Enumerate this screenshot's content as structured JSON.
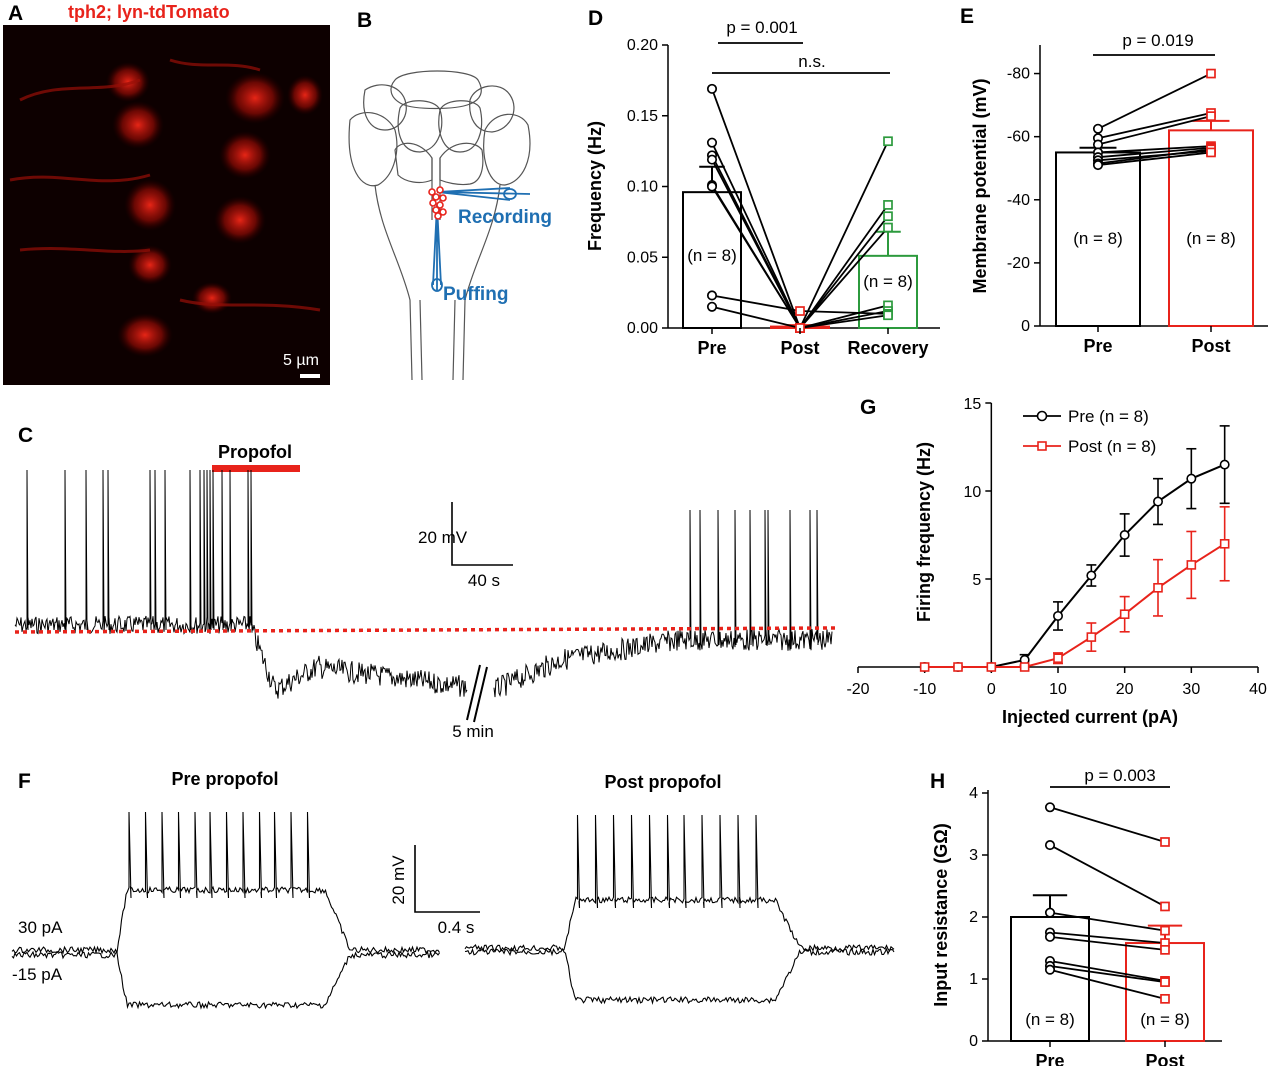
{
  "panels": {
    "a": {
      "label": "A",
      "title": "tph2; lyn-tdTomato",
      "scale_bar": "5 µm"
    },
    "b": {
      "label": "B",
      "recording": "Recording",
      "puffing": "Puffing"
    },
    "c": {
      "label": "C",
      "drug": "Propofol",
      "scale_v": "20 mV",
      "scale_t": "40 s",
      "break": "5 min"
    },
    "d": {
      "label": "D",
      "stat_main": "p = 0.001",
      "stat_ns": "n.s.",
      "n_left": "(n = 8)",
      "n_right": "(n = 8)"
    },
    "e": {
      "label": "E",
      "stat": "p = 0.019",
      "n_pre": "(n = 8)",
      "n_post": "(n = 8)"
    },
    "f": {
      "label": "F",
      "pre_title": "Pre propofol",
      "post_title": "Post propofol",
      "current_hi": "30 pA",
      "current_lo": "-15 pA",
      "scale_v": "20 mV",
      "scale_t": "0.4 s"
    },
    "g": {
      "label": "G"
    },
    "h": {
      "label": "H",
      "stat": "p = 0.003",
      "n_pre": "(n = 8)",
      "n_post": "(n = 8)"
    }
  },
  "colors": {
    "red": "#e8231b",
    "blue": "#1f6fb2",
    "green": "#2c9a3d",
    "black": "#000000"
  },
  "chart_data": [
    {
      "id": "d",
      "type": "bar",
      "ylabel": "Frequency (Hz)",
      "categories": [
        "Pre",
        "Post",
        "Recovery"
      ],
      "ylim": [
        0,
        0.2
      ],
      "yticks": [
        "0.00",
        "0.05",
        "0.10",
        "0.15",
        "0.20"
      ],
      "ytick_values": [
        0,
        0.05,
        0.1,
        0.15,
        0.2
      ],
      "values": [
        0.096,
        0.001,
        0.051
      ],
      "errors": [
        0.018,
        0.001,
        0.017
      ],
      "pairs": [
        [
          0.169,
          0.0,
          0.132
        ],
        [
          0.131,
          0.0,
          0.087
        ],
        [
          0.122,
          0.0,
          0.079
        ],
        [
          0.119,
          0.0,
          0.071
        ],
        [
          0.101,
          0.0,
          0.016
        ],
        [
          0.1,
          0.0,
          0.012
        ],
        [
          0.023,
          0.012,
          0.01
        ],
        [
          0.015,
          0.0,
          0.009
        ]
      ]
    },
    {
      "id": "e",
      "type": "bar",
      "ylabel": "Membrane potential (mV)",
      "categories": [
        "Pre",
        "Post"
      ],
      "ylim": [
        0,
        -90
      ],
      "yticks": [
        "0",
        "-20",
        "-40",
        "-60",
        "-80"
      ],
      "ytick_values": [
        0,
        -20,
        -40,
        -60,
        -80
      ],
      "values": [
        -55.0,
        -62.0
      ],
      "errors": [
        1.5,
        3.0
      ],
      "pairs": [
        [
          -62.5,
          -80.0
        ],
        [
          -59.5,
          -67.5
        ],
        [
          -57.5,
          -66.5
        ],
        [
          -55.0,
          -57.0
        ],
        [
          -53.5,
          -56.5
        ],
        [
          -52.5,
          -55.5
        ],
        [
          -51.5,
          -56.0
        ],
        [
          -51.0,
          -55.0
        ]
      ]
    },
    {
      "id": "g",
      "type": "line",
      "xlabel": "Injected current (pA)",
      "ylabel": "Firing frequency (Hz)",
      "xlim": [
        -20,
        40
      ],
      "ylim": [
        0,
        15
      ],
      "xticks": [
        "-20",
        "-10",
        "0",
        "10",
        "20",
        "30",
        "40"
      ],
      "xtick_values": [
        -20,
        -10,
        0,
        10,
        20,
        30,
        40
      ],
      "yticks": [
        "5",
        "10",
        "15"
      ],
      "ytick_values": [
        5,
        10,
        15
      ],
      "x": [
        -10,
        -5,
        0,
        5,
        10,
        15,
        20,
        25,
        30,
        35
      ],
      "series": [
        {
          "name": "Pre (n = 8)",
          "values": [
            0,
            0,
            0,
            0.4,
            2.9,
            5.2,
            7.5,
            9.4,
            10.7,
            11.5
          ],
          "errors": [
            0,
            0,
            0,
            0.3,
            0.8,
            0.6,
            1.2,
            1.3,
            1.7,
            2.2
          ]
        },
        {
          "name": "Post (n = 8)",
          "values": [
            0,
            0,
            0,
            0,
            0.5,
            1.7,
            3.0,
            4.5,
            5.8,
            7.0
          ],
          "errors": [
            0,
            0,
            0,
            0,
            0.3,
            0.8,
            1.0,
            1.6,
            1.9,
            2.1
          ]
        }
      ]
    },
    {
      "id": "h",
      "type": "bar",
      "ylabel": "Input resistance (GΩ)",
      "categories": [
        "Pre",
        "Post"
      ],
      "ylim": [
        0,
        4
      ],
      "yticks": [
        "0",
        "1",
        "2",
        "3",
        "4"
      ],
      "ytick_values": [
        0,
        1,
        2,
        3,
        4
      ],
      "values": [
        2.0,
        1.58
      ],
      "errors": [
        0.35,
        0.28
      ],
      "pairs": [
        [
          3.77,
          3.21
        ],
        [
          3.16,
          2.17
        ],
        [
          2.07,
          1.78
        ],
        [
          1.75,
          1.58
        ],
        [
          1.68,
          1.47
        ],
        [
          1.29,
          0.97
        ],
        [
          1.21,
          0.95
        ],
        [
          1.15,
          0.68
        ]
      ]
    }
  ]
}
